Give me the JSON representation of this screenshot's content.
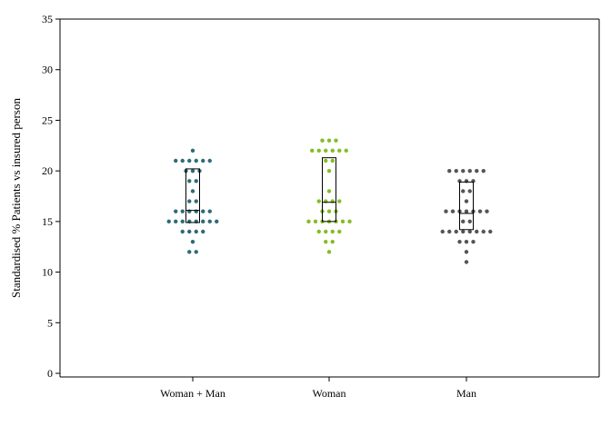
{
  "chart_data": {
    "type": "scatter",
    "subtype": "dot-strip-with-box",
    "title": "",
    "xlabel": "",
    "ylabel": "Standardised % Patients vs insured person",
    "ylim": [
      0,
      35
    ],
    "yticks": [
      0,
      5,
      10,
      15,
      20,
      25,
      30,
      35
    ],
    "grid": false,
    "legend": "none",
    "categories": [
      "Woman + Man",
      "Woman",
      "Man"
    ],
    "groups": [
      {
        "category": "Woman + Man",
        "color": "#2e6b78",
        "points": [
          12,
          12,
          13,
          14,
          14,
          14,
          14,
          15,
          15,
          15,
          15,
          15,
          15,
          15,
          15,
          16,
          16,
          16,
          16,
          16,
          16,
          17,
          17,
          18,
          19,
          19,
          20,
          20,
          20,
          21,
          21,
          21,
          21,
          21,
          21,
          22
        ],
        "box": {
          "q1": 14.9,
          "median": 16.1,
          "q3": 20.2
        }
      },
      {
        "category": "Woman",
        "color": "#84bd23",
        "points": [
          12,
          13,
          13,
          14,
          14,
          14,
          14,
          15,
          15,
          15,
          15,
          15,
          15,
          15,
          16,
          16,
          16,
          17,
          17,
          17,
          17,
          18,
          20,
          21,
          21,
          22,
          22,
          22,
          22,
          22,
          22,
          23,
          23,
          23
        ],
        "box": {
          "q1": 15.0,
          "median": 16.9,
          "q3": 21.3
        }
      },
      {
        "category": "Man",
        "color": "#555555",
        "points": [
          11,
          12,
          13,
          13,
          13,
          14,
          14,
          14,
          14,
          14,
          14,
          14,
          14,
          15,
          15,
          16,
          16,
          16,
          16,
          16,
          16,
          16,
          17,
          18,
          18,
          19,
          19,
          19,
          20,
          20,
          20,
          20,
          20,
          20
        ],
        "box": {
          "q1": 14.2,
          "median": 15.8,
          "q3": 18.9
        }
      }
    ]
  }
}
